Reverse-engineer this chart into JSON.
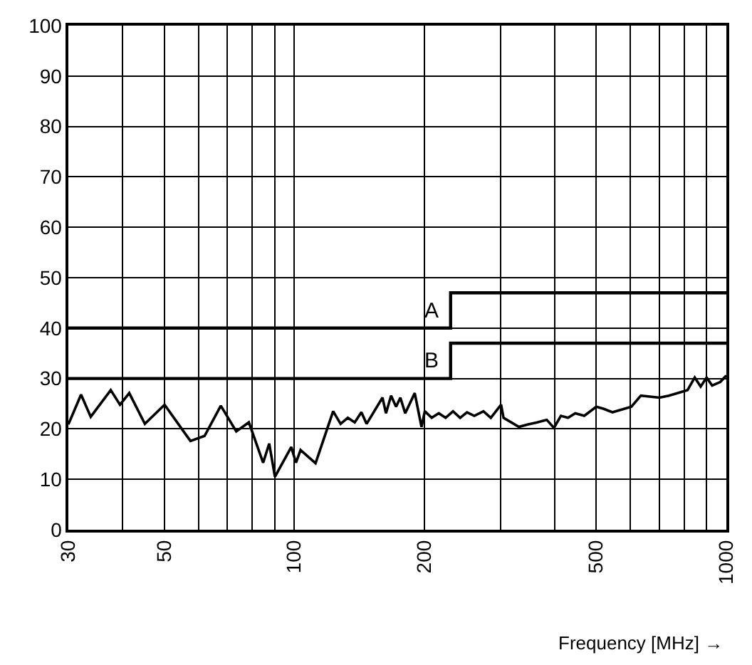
{
  "chart_data": {
    "type": "line",
    "xlabel": "Frequency [MHz] →",
    "log": "x",
    "xlim": [
      30,
      1000
    ],
    "ylim": [
      0,
      100
    ],
    "xticks": [
      30,
      {
        "value": 40,
        "label": null
      },
      50,
      {
        "value": 60,
        "label": null
      },
      {
        "value": 70,
        "label": null
      },
      {
        "value": 80,
        "label": null
      },
      {
        "value": 90,
        "label": null
      },
      100,
      200,
      {
        "value": 300,
        "label": null
      },
      {
        "value": 400,
        "label": null
      },
      500,
      {
        "value": 600,
        "label": null
      },
      {
        "value": 700,
        "label": null
      },
      {
        "value": 800,
        "label": null
      },
      {
        "value": 900,
        "label": null
      },
      1000
    ],
    "yticks": [
      0,
      10,
      20,
      30,
      40,
      50,
      60,
      70,
      80,
      90,
      100
    ],
    "grid": true,
    "legend": false,
    "marker": "none",
    "line_style": "solid",
    "series": [
      {
        "name": "A",
        "color": "#000000",
        "x": [
          30,
          230,
          230,
          1000
        ],
        "values": [
          40,
          40,
          47,
          47
        ]
      },
      {
        "name": "B",
        "color": "#000000",
        "x": [
          30,
          230,
          230,
          1000
        ],
        "values": [
          30,
          30,
          37,
          37
        ]
      },
      {
        "color": "#000000",
        "x": [
          30,
          32.1,
          33.8,
          37.6,
          39.5,
          41.5,
          45.1,
          50.1,
          57.5,
          62,
          67.6,
          73.4,
          78.5,
          84.7,
          87.5,
          90.2,
          98.4,
          100.9,
          103.4,
          112,
          123,
          128,
          133,
          138,
          143,
          147,
          160,
          163,
          167.5,
          172,
          176,
          180.6,
          190,
          197,
          200.5,
          208,
          216,
          224,
          233,
          242,
          251,
          261,
          274,
          285,
          301,
          305,
          331,
          348,
          365,
          384,
          399,
          414,
          430,
          447,
          469,
          500,
          519,
          545,
          603,
          634,
          700,
          736,
          813,
          845,
          872,
          900,
          927,
          968,
          1000
        ],
        "values": [
          20.9,
          26.8,
          22.4,
          27.7,
          24.8,
          27.1,
          21.0,
          24.8,
          17.6,
          18.6,
          24.6,
          19.5,
          21.3,
          13.3,
          17.1,
          10.5,
          16.4,
          13.3,
          15.8,
          13.2,
          23.5,
          21.0,
          22.2,
          21.3,
          23.3,
          21.0,
          26.2,
          23.1,
          26.6,
          24.4,
          26.2,
          23.1,
          27.1,
          20.4,
          23.5,
          22.2,
          23.1,
          22.2,
          23.5,
          22.2,
          23.3,
          22.6,
          23.5,
          22.2,
          24.8,
          22.2,
          20.4,
          20.9,
          21.3,
          21.8,
          20.2,
          22.6,
          22.2,
          23.1,
          22.6,
          24.4,
          24.0,
          23.3,
          24.4,
          26.6,
          26.2,
          26.6,
          27.7,
          30.2,
          28.4,
          30.2,
          28.6,
          29.3,
          30.6
        ]
      }
    ]
  }
}
